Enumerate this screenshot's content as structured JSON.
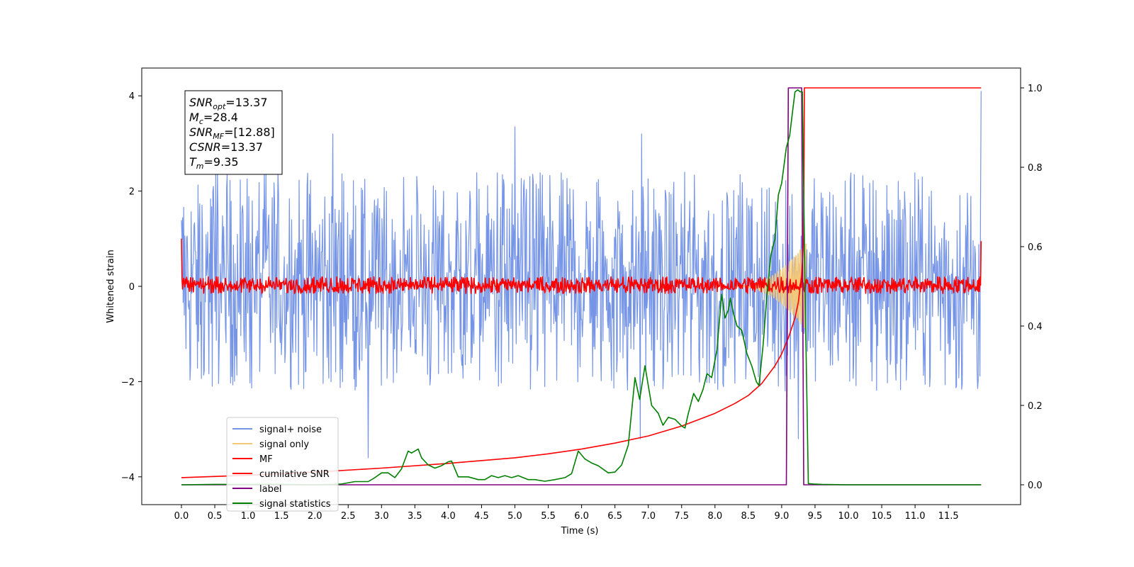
{
  "chart_data": {
    "type": "line",
    "xlabel": "Time (s)",
    "ylabel": "Whitened strain",
    "xlim": [
      -0.6,
      12.6
    ],
    "ylim": [
      -4.57,
      4.57
    ],
    "y2lim": [
      -0.05,
      1.05
    ],
    "grid": false,
    "legend_position": "lower-left",
    "x_ticks": [
      "0.0",
      "0.5",
      "1.0",
      "1.5",
      "2.0",
      "2.5",
      "3.0",
      "3.5",
      "4.0",
      "4.5",
      "5.0",
      "5.5",
      "6.0",
      "6.5",
      "7.0",
      "7.5",
      "8.0",
      "8.5",
      "9.0",
      "9.5",
      "10.0",
      "10.5",
      "11.0",
      "11.5"
    ],
    "y_ticks": [
      "4",
      "2",
      "0",
      "−2",
      "−4"
    ],
    "y2_ticks": [
      "1.0",
      "0.8",
      "0.6",
      "0.4",
      "0.2",
      "0.0"
    ],
    "annotation": {
      "lines": [
        {
          "base": "SNR",
          "sub": "opt",
          "value": "=13.37"
        },
        {
          "base": "M",
          "sub": "c",
          "value": "=28.4"
        },
        {
          "base": "SNR",
          "sub": "MF",
          "value": "=[12.88]"
        },
        {
          "base": "CSNR",
          "sub": "",
          "value": "=13.37"
        },
        {
          "base": "T",
          "sub": "m",
          "value": "=9.35"
        }
      ]
    },
    "series": [
      {
        "name": "signal+ noise",
        "color": "#7695e6",
        "axis": "left",
        "kind": "noise",
        "x_range": [
          0.0,
          11.99
        ],
        "band": [
          -2.2,
          2.4
        ],
        "peaks": [
          [
            2.27,
            3.2
          ],
          [
            5.0,
            3.35
          ],
          [
            6.9,
            3.2
          ],
          [
            11.99,
            4.1
          ],
          [
            2.8,
            -3.6
          ],
          [
            6.88,
            -3.2
          ],
          [
            9.25,
            -3.2
          ]
        ]
      },
      {
        "name": "signal only",
        "color": "#f5c878",
        "axis": "left",
        "kind": "chirp",
        "chirp_start": 8.3,
        "merger": 9.35,
        "peak_amplitude": 0.9
      },
      {
        "name": "MF",
        "color": "#ff0000",
        "axis": "left",
        "kind": "noise",
        "x_range": [
          0.0,
          11.99
        ],
        "band": [
          -0.15,
          0.2
        ],
        "endpoints": [
          1.0,
          0.95
        ]
      },
      {
        "name": "cumilative SNR",
        "color": "#ff0000",
        "axis": "right",
        "x": [
          0.0,
          1.0,
          2.0,
          3.0,
          4.0,
          5.0,
          5.5,
          6.0,
          6.5,
          7.0,
          7.5,
          8.0,
          8.3,
          8.5,
          8.7,
          8.9,
          9.0,
          9.1,
          9.2,
          9.25,
          9.3,
          9.33,
          9.34,
          11.99
        ],
        "y": [
          0.018,
          0.024,
          0.032,
          0.042,
          0.054,
          0.068,
          0.078,
          0.09,
          0.105,
          0.123,
          0.148,
          0.18,
          0.205,
          0.225,
          0.255,
          0.3,
          0.33,
          0.37,
          0.42,
          0.46,
          0.53,
          0.62,
          1.0,
          1.0
        ]
      },
      {
        "name": "label",
        "color": "#800080",
        "axis": "right",
        "x": [
          0.0,
          9.07,
          9.1,
          9.3,
          9.33,
          11.99
        ],
        "y": [
          0.0,
          0.0,
          1.0,
          1.0,
          0.0,
          0.0
        ]
      },
      {
        "name": "signal statistics",
        "color": "#008000",
        "axis": "right",
        "x": [
          0.0,
          0.5,
          1.0,
          1.5,
          2.0,
          2.4,
          2.6,
          2.8,
          2.9,
          3.0,
          3.1,
          3.2,
          3.3,
          3.4,
          3.45,
          3.55,
          3.6,
          3.7,
          3.8,
          3.9,
          4.0,
          4.05,
          4.15,
          4.3,
          4.45,
          4.55,
          4.65,
          4.75,
          4.85,
          4.95,
          5.05,
          5.2,
          5.3,
          5.45,
          5.6,
          5.75,
          5.85,
          5.95,
          6.05,
          6.15,
          6.25,
          6.4,
          6.5,
          6.6,
          6.7,
          6.8,
          6.87,
          6.95,
          7.05,
          7.15,
          7.22,
          7.3,
          7.4,
          7.5,
          7.55,
          7.6,
          7.68,
          7.75,
          7.82,
          7.88,
          7.95,
          8.03,
          8.1,
          8.15,
          8.2,
          8.23,
          8.28,
          8.33,
          8.4,
          8.48,
          8.55,
          8.62,
          8.66,
          8.72,
          8.78,
          8.84,
          8.9,
          8.95,
          9.0,
          9.07,
          9.12,
          9.17,
          9.2,
          9.24,
          9.28,
          9.31,
          9.35,
          9.4,
          9.48,
          9.6,
          10.0,
          11.0,
          11.99
        ],
        "y": [
          0.0,
          0.001,
          0.001,
          0.001,
          0.0,
          0.002,
          0.008,
          0.008,
          0.018,
          0.03,
          0.03,
          0.018,
          0.04,
          0.085,
          0.08,
          0.09,
          0.068,
          0.05,
          0.042,
          0.048,
          0.058,
          0.06,
          0.02,
          0.02,
          0.013,
          0.013,
          0.023,
          0.018,
          0.023,
          0.018,
          0.023,
          0.013,
          0.013,
          0.009,
          0.013,
          0.018,
          0.028,
          0.085,
          0.065,
          0.055,
          0.048,
          0.03,
          0.032,
          0.05,
          0.1,
          0.27,
          0.215,
          0.3,
          0.2,
          0.18,
          0.15,
          0.17,
          0.165,
          0.148,
          0.143,
          0.18,
          0.23,
          0.21,
          0.24,
          0.28,
          0.27,
          0.34,
          0.48,
          0.42,
          0.44,
          0.47,
          0.43,
          0.4,
          0.39,
          0.33,
          0.3,
          0.26,
          0.25,
          0.35,
          0.48,
          0.58,
          0.62,
          0.73,
          0.76,
          0.85,
          0.88,
          0.95,
          0.99,
          0.995,
          0.99,
          0.99,
          0.5,
          0.003,
          0.002,
          0.001,
          0.0,
          0.0,
          0.0
        ]
      }
    ]
  }
}
